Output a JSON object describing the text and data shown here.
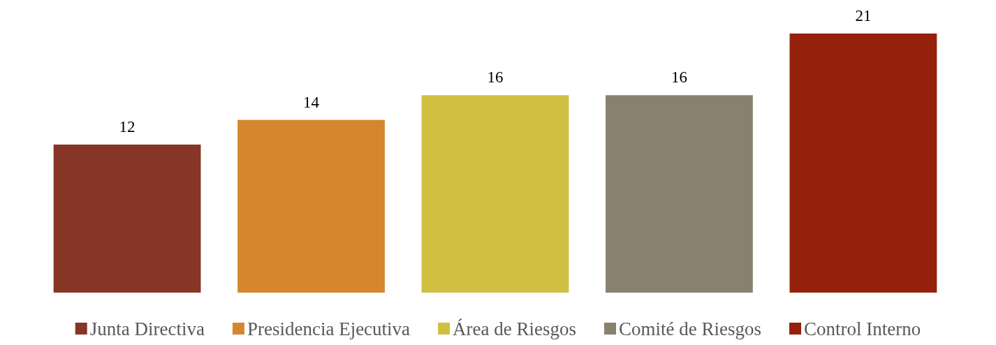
{
  "chart_data": {
    "type": "bar",
    "categories": [
      null
    ],
    "data_labels": true,
    "legend": "bottom",
    "series": [
      {
        "name": "Junta Directiva",
        "color": "#863526",
        "values": [
          12
        ]
      },
      {
        "name": "Presidencia Ejecutiva",
        "color": "#d6862e",
        "values": [
          14
        ]
      },
      {
        "name": "Área de Riesgos",
        "color": "#d1bf42",
        "values": [
          16
        ]
      },
      {
        "name": "Comité de Riesgos",
        "color": "#89806d",
        "values": [
          16
        ]
      },
      {
        "name": "Control Interno",
        "color": "#95210c",
        "values": [
          21
        ]
      }
    ]
  }
}
